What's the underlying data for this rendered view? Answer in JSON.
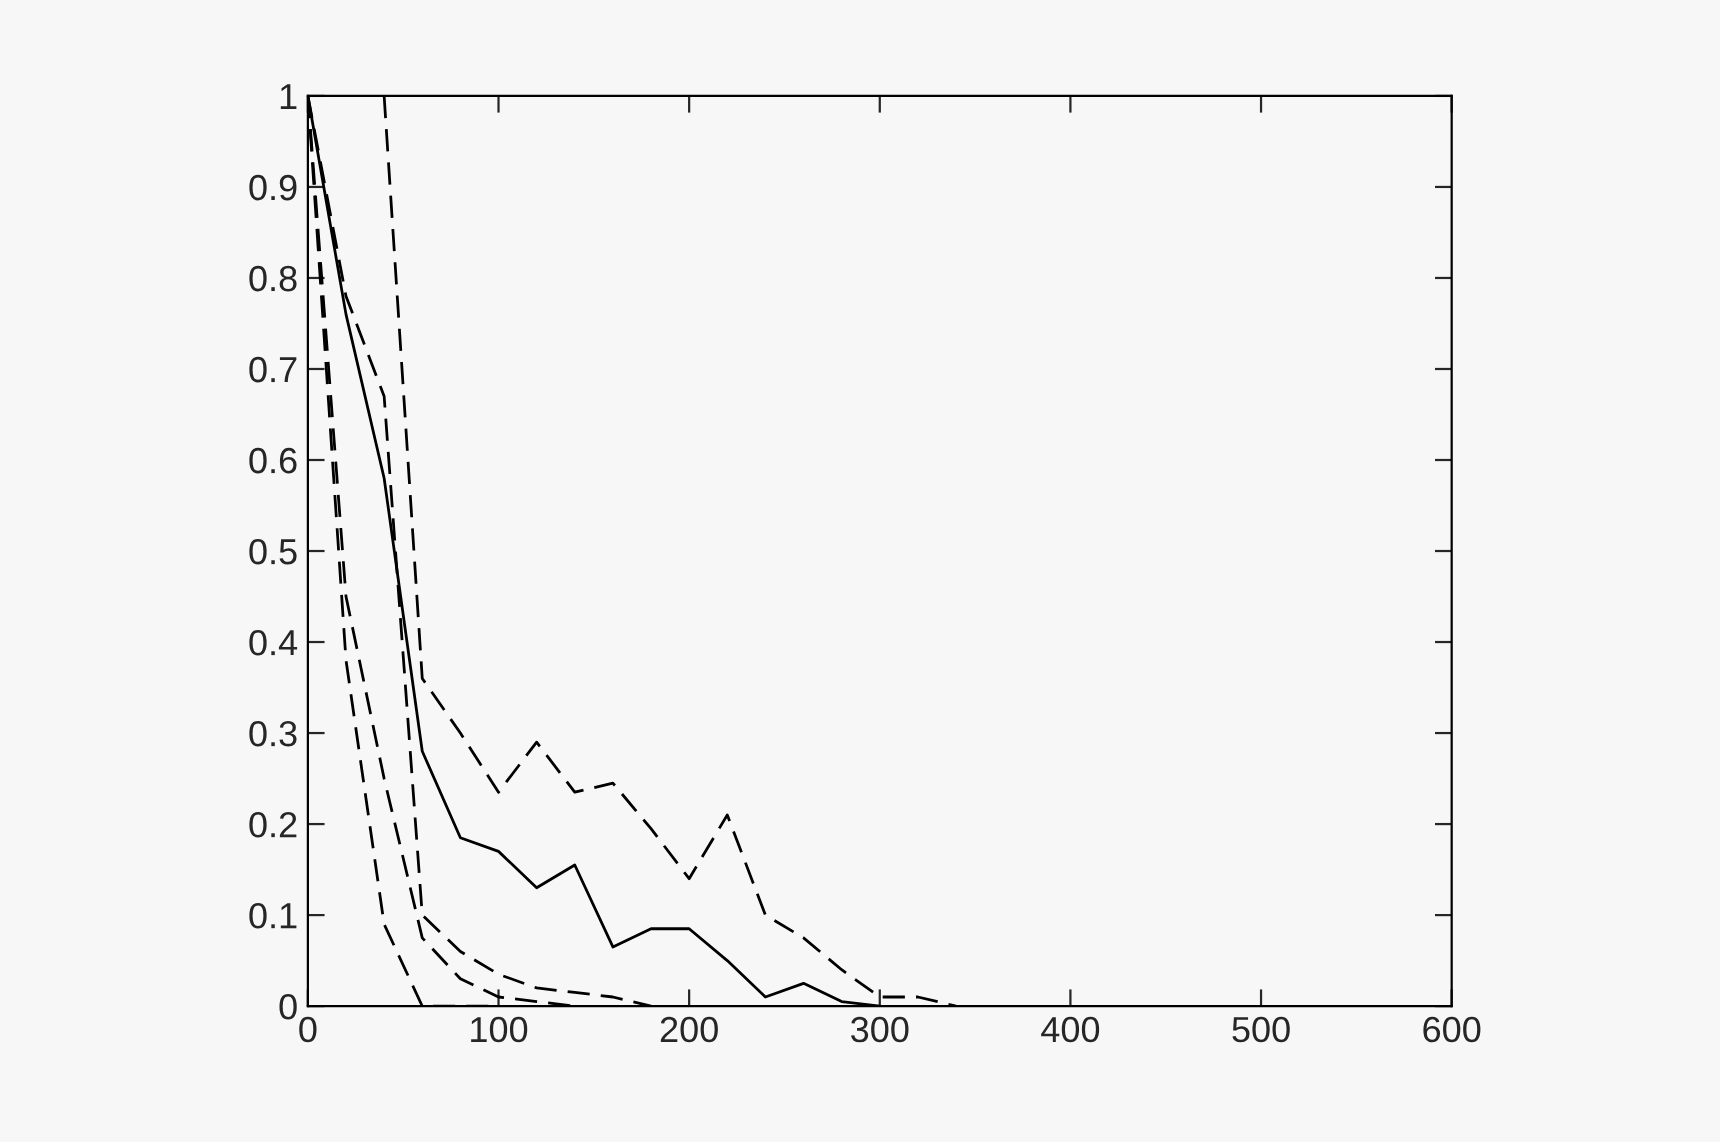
{
  "chart_data": {
    "type": "line",
    "xlim": [
      0,
      600
    ],
    "ylim": [
      0,
      1
    ],
    "xticks": [
      0,
      100,
      200,
      300,
      400,
      500,
      600
    ],
    "yticks": [
      0,
      0.1,
      0.2,
      0.3,
      0.4,
      0.5,
      0.6,
      0.7,
      0.8,
      0.9,
      1
    ],
    "grid": false,
    "legend": false,
    "marker": "none",
    "series": [
      {
        "color": "#000000",
        "line_style": "dashed",
        "x": [
          40,
          60,
          80,
          100,
          120,
          140,
          160,
          180,
          200,
          220,
          240,
          260,
          280,
          300,
          320,
          340
        ],
        "values": [
          1.0,
          0.36,
          0.3,
          0.235,
          0.29,
          0.235,
          0.245,
          0.195,
          0.14,
          0.21,
          0.1,
          0.075,
          0.04,
          0.01,
          0.01,
          0.0
        ]
      },
      {
        "color": "#000000",
        "line_style": "solid",
        "x": [
          0,
          20,
          40,
          60,
          80,
          100,
          120,
          140,
          160,
          180,
          200,
          220,
          240,
          260,
          280,
          300
        ],
        "values": [
          1.0,
          0.76,
          0.58,
          0.28,
          0.185,
          0.17,
          0.13,
          0.155,
          0.065,
          0.085,
          0.085,
          0.05,
          0.01,
          0.025,
          0.005,
          0.0
        ]
      },
      {
        "color": "#000000",
        "line_style": "dashed",
        "x": [
          0,
          20,
          40,
          60,
          80,
          100,
          120,
          140,
          160,
          180
        ],
        "values": [
          1.0,
          0.78,
          0.67,
          0.1,
          0.06,
          0.035,
          0.02,
          0.015,
          0.01,
          0.0
        ]
      },
      {
        "color": "#000000",
        "line_style": "dashed",
        "x": [
          0,
          20,
          40,
          60,
          80,
          100,
          120,
          140
        ],
        "values": [
          1.0,
          0.45,
          0.25,
          0.075,
          0.03,
          0.01,
          0.005,
          0.0
        ]
      },
      {
        "color": "#000000",
        "line_style": "dashed",
        "x": [
          0,
          20,
          40,
          60,
          80,
          100
        ],
        "values": [
          1.0,
          0.38,
          0.09,
          0.0,
          0.0,
          0.0
        ]
      }
    ]
  }
}
